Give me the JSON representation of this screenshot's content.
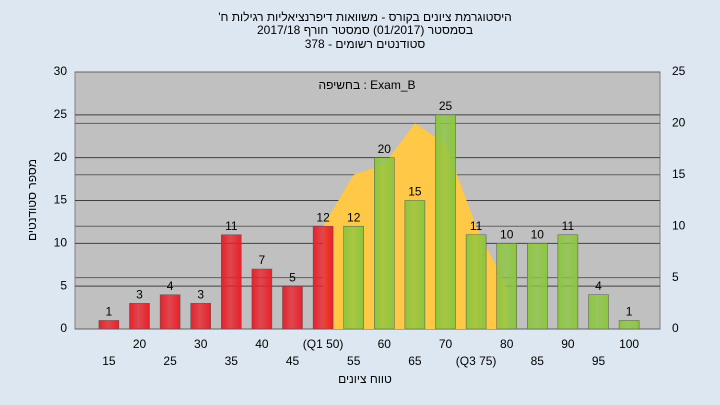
{
  "chart_data": {
    "type": "bar",
    "title_lines": [
      "'היסטוגרמת ציונים בקורס - משוואות דיפרנציאליות רגילות ח",
      "בסמסטר  (01/2017)  סמסטר חורף  2017/18",
      "סטודנטים רשומים - 378"
    ],
    "annotation": "בחשיפה : Exam_B",
    "x_label": "טווח ציונים",
    "y_label": "מספר סטודנטים",
    "categories": [
      "15",
      "20",
      "25",
      "30",
      "35",
      "40",
      "45",
      "(Q1 50)",
      "55",
      "60",
      "65",
      "70",
      "(Q3 75)",
      "80",
      "85",
      "90",
      "95",
      "100"
    ],
    "values": [
      1,
      3,
      4,
      3,
      11,
      7,
      5,
      12,
      12,
      20,
      15,
      25,
      11,
      10,
      10,
      11,
      4,
      1
    ],
    "bar_colors": [
      "#e8202a",
      "#e8202a",
      "#e8202a",
      "#e8202a",
      "#e8202a",
      "#e8202a",
      "#e8202a",
      "#e8202a",
      "#8cc63f",
      "#8cc63f",
      "#8cc63f",
      "#8cc63f",
      "#8cc63f",
      "#8cc63f",
      "#8cc63f",
      "#8cc63f",
      "#8cc63f",
      "#8cc63f"
    ],
    "area": {
      "color": "#ffc847",
      "axis": "y2",
      "values": [
        null,
        null,
        null,
        null,
        null,
        null,
        null,
        10,
        15,
        16,
        20,
        18,
        10,
        4,
        null,
        null,
        null,
        null
      ]
    },
    "ylim": [
      0,
      30
    ],
    "yticks": [
      0,
      5,
      10,
      15,
      20,
      25,
      30
    ],
    "y2lim": [
      0,
      25
    ],
    "y2ticks": [
      0,
      5,
      10,
      15,
      20,
      25
    ],
    "grid": true
  }
}
